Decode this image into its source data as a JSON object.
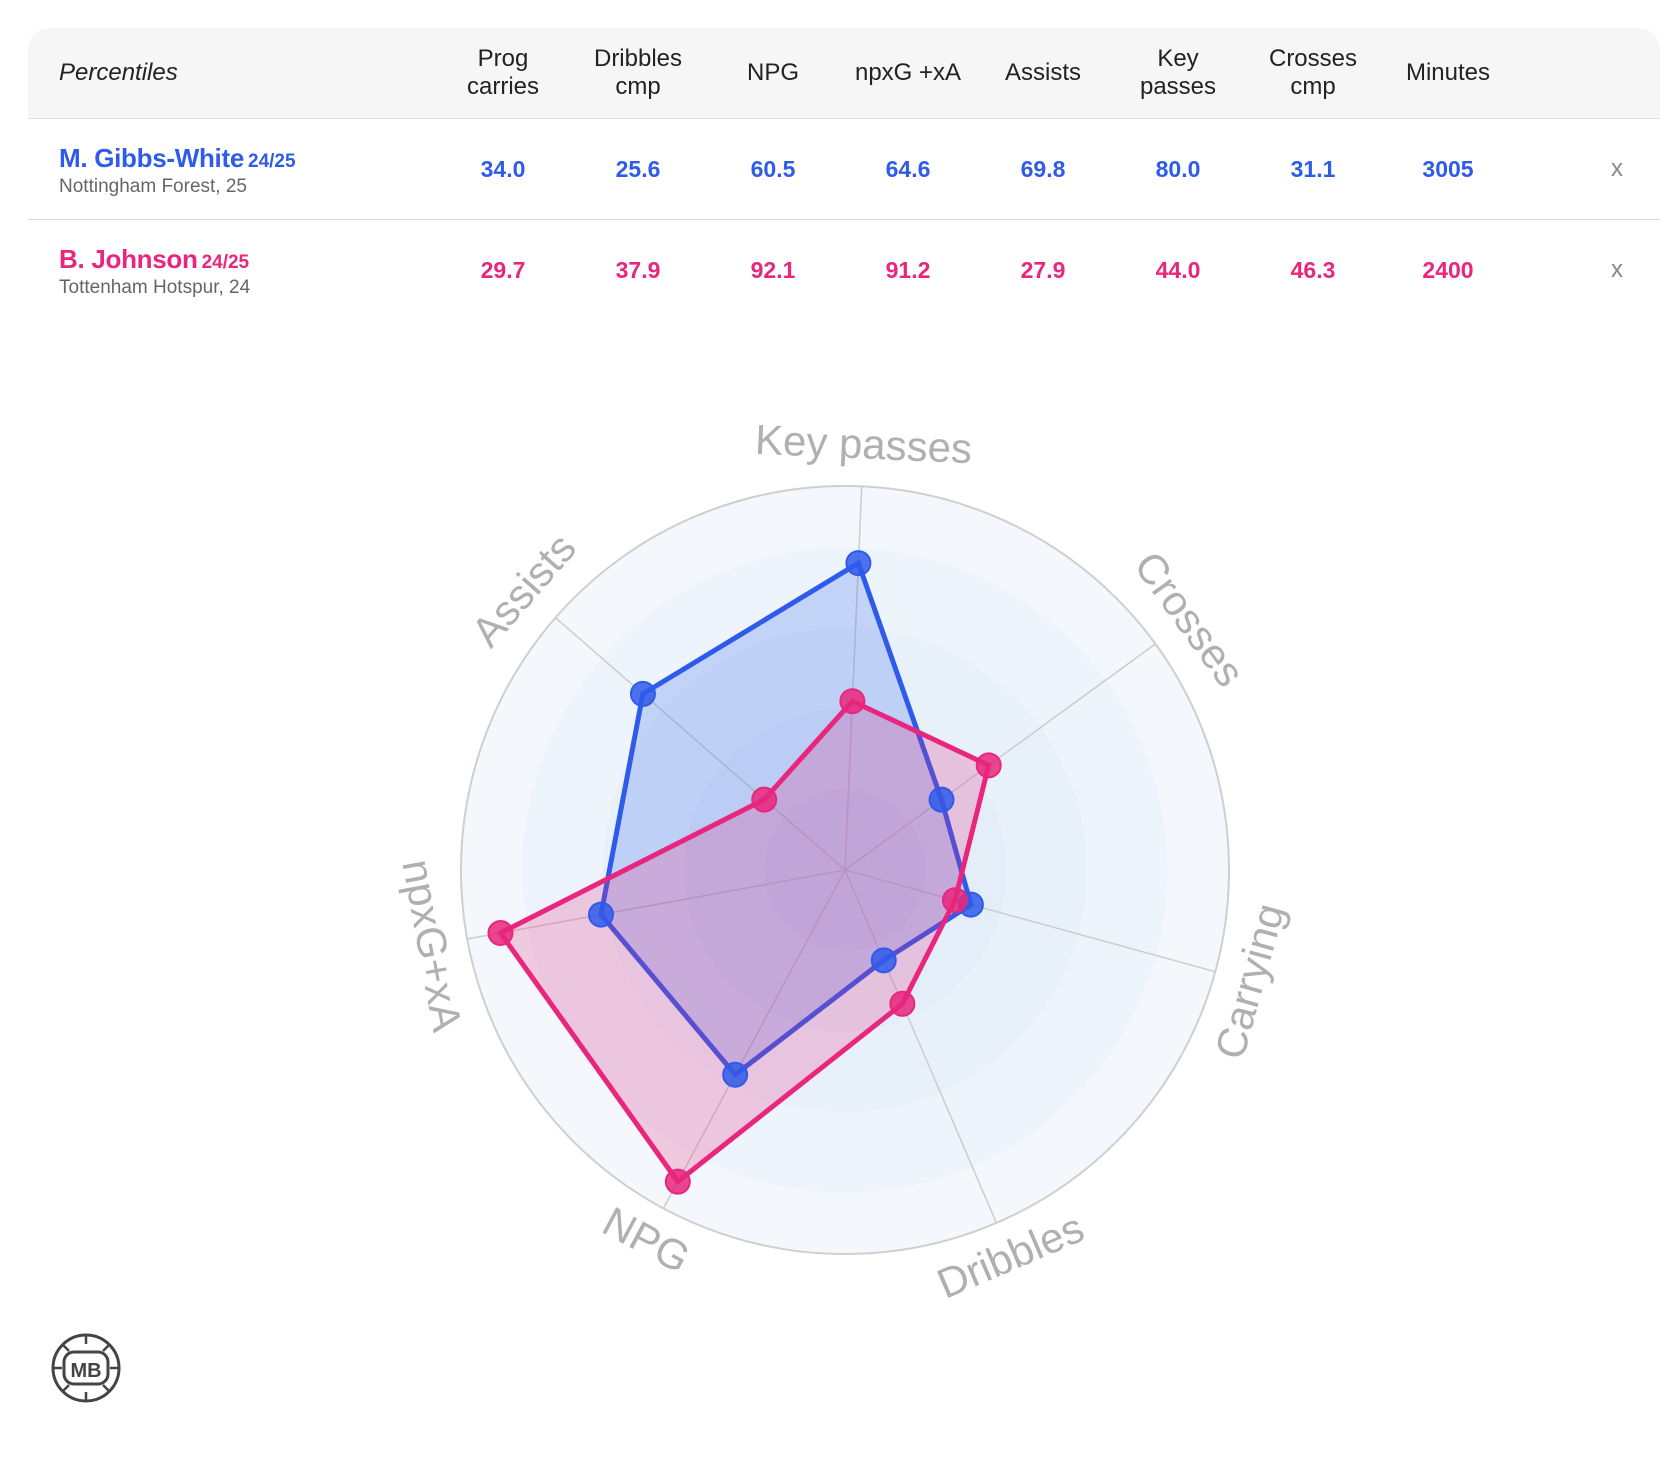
{
  "table": {
    "title": "Percentiles",
    "columns": [
      "Prog\ncarries",
      "Dribbles\ncmp",
      "NPG",
      "npxG +xA",
      "Assists",
      "Key\npasses",
      "Crosses\ncmp",
      "Minutes"
    ],
    "rows": [
      {
        "name": "M. Gibbs-White",
        "season": "24/25",
        "team": "Nottingham Forest, 25",
        "color": "#2f5bea",
        "values": [
          "34.0",
          "25.6",
          "60.5",
          "64.6",
          "69.8",
          "80.0",
          "31.1",
          "3005"
        ],
        "remove_label": "x"
      },
      {
        "name": "B. Johnson",
        "season": "24/25",
        "team": "Tottenham Hotspur, 24",
        "color": "#e8267d",
        "values": [
          "29.7",
          "37.9",
          "92.1",
          "91.2",
          "27.9",
          "44.0",
          "46.3",
          "2400"
        ],
        "remove_label": "x"
      }
    ]
  },
  "chart_data": {
    "type": "radar",
    "axes": [
      "Key passes",
      "Crosses",
      "Carrying",
      "Dribbles",
      "NPG",
      "npxG+xA",
      "Assists"
    ],
    "rlim": [
      0,
      100
    ],
    "series": [
      {
        "name": "M. Gibbs-White",
        "color": "#2f5bea",
        "values": [
          80.0,
          31.1,
          34.0,
          25.6,
          60.5,
          64.6,
          69.8
        ]
      },
      {
        "name": "B. Johnson",
        "color": "#e8267d",
        "values": [
          44.0,
          46.3,
          29.7,
          37.9,
          92.1,
          91.2,
          27.9
        ]
      }
    ]
  },
  "logo": {
    "text": "MB"
  }
}
